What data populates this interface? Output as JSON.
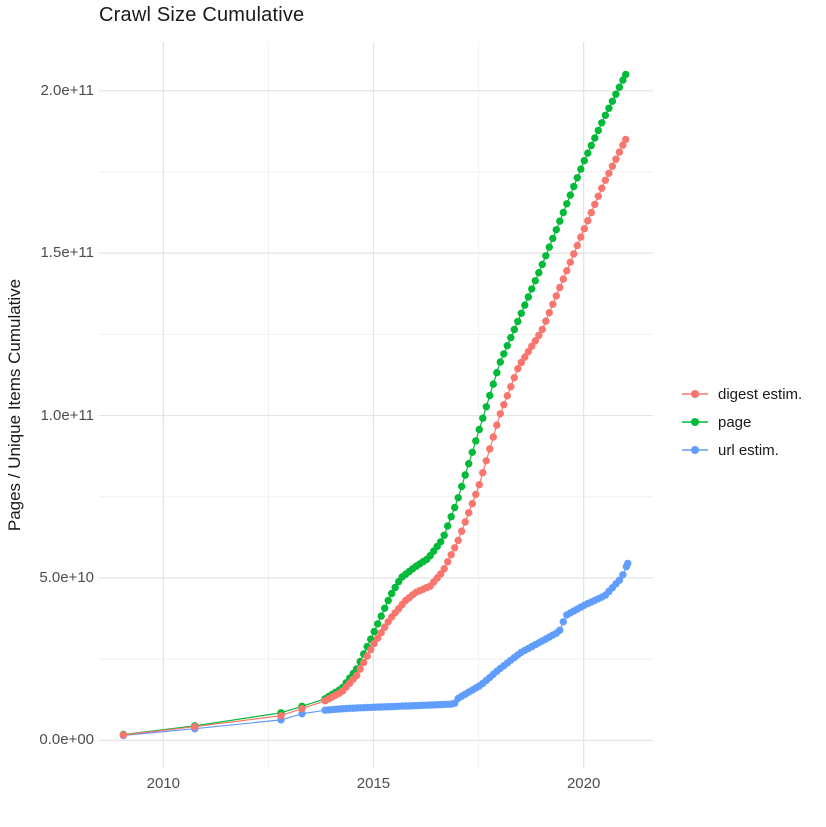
{
  "chart_data": {
    "type": "scatter",
    "title": "Crawl Size Cumulative",
    "xlabel": "",
    "ylabel": "Pages / Unique Items Cumulative",
    "legend_position": "right",
    "grid": true,
    "point_interval_years": 0.08333,
    "x_axis": {
      "range": [
        2008.47,
        2021.65
      ],
      "major_ticks": [
        {
          "value": 2010,
          "label": "2010"
        },
        {
          "value": 2015,
          "label": "2015"
        },
        {
          "value": 2020,
          "label": "2020"
        }
      ],
      "minor_ticks": [
        2012.5,
        2017.5
      ]
    },
    "y_axis": {
      "range": [
        -8500000000.0,
        215000000000.0
      ],
      "major_ticks": [
        {
          "value": 0.0,
          "label": "0.0e+00"
        },
        {
          "value": 50000000000.0,
          "label": "5.0e+10"
        },
        {
          "value": 100000000000.0,
          "label": "1.0e+11"
        },
        {
          "value": 150000000000.0,
          "label": "1.5e+11"
        },
        {
          "value": 200000000000.0,
          "label": "2.0e+11"
        }
      ],
      "minor_ticks": [
        25000000000.0,
        75000000000.0,
        125000000000.0,
        175000000000.0
      ]
    },
    "colors": {
      "grid_major": "#e4e4e4",
      "grid_minor": "#f1f1f1",
      "tick_text": "#4d4d4d",
      "title_text": "#1a1a1a"
    },
    "series": [
      {
        "name": "digest estim.",
        "color": "#F8766D",
        "sparse_points": [
          [
            2009.05,
            1700000000.0
          ],
          [
            2010.75,
            4200000000.0
          ],
          [
            2012.8,
            7600000000.0
          ],
          [
            2013.3,
            9800000000.0
          ]
        ],
        "knots": [
          [
            2013.85,
            12200000000.0
          ],
          [
            2014.25,
            15000000000.0
          ],
          [
            2014.6,
            20000000000.0
          ],
          [
            2015.0,
            29500000000.0
          ],
          [
            2015.4,
            37500000000.0
          ],
          [
            2015.76,
            43000000000.0
          ],
          [
            2016.0,
            45500000000.0
          ],
          [
            2016.35,
            47500000000.0
          ],
          [
            2016.65,
            52000000000.0
          ],
          [
            2017.0,
            61000000000.0
          ],
          [
            2017.5,
            78000000000.0
          ],
          [
            2018.0,
            100000000000.0
          ],
          [
            2018.45,
            115000000000.0
          ],
          [
            2019.0,
            126000000000.0
          ],
          [
            2019.5,
            141500000000.0
          ],
          [
            2020.0,
            157000000000.0
          ],
          [
            2020.5,
            172000000000.0
          ],
          [
            2021.0,
            185000000000.0
          ]
        ]
      },
      {
        "name": "page",
        "color": "#00BA38",
        "sparse_points": [
          [
            2009.05,
            1800000000.0
          ],
          [
            2010.75,
            4500000000.0
          ],
          [
            2012.8,
            8500000000.0
          ],
          [
            2013.3,
            10500000000.0
          ]
        ],
        "knots": [
          [
            2013.85,
            12800000000.0
          ],
          [
            2014.25,
            16000000000.0
          ],
          [
            2014.6,
            22000000000.0
          ],
          [
            2015.0,
            33000000000.0
          ],
          [
            2015.4,
            44500000000.0
          ],
          [
            2015.65,
            50000000000.0
          ],
          [
            2016.0,
            53500000000.0
          ],
          [
            2016.3,
            56000000000.0
          ],
          [
            2016.65,
            62000000000.0
          ],
          [
            2017.0,
            74000000000.0
          ],
          [
            2017.5,
            95000000000.0
          ],
          [
            2018.0,
            116000000000.0
          ],
          [
            2018.5,
            131000000000.0
          ],
          [
            2019.0,
            146000000000.0
          ],
          [
            2019.5,
            162000000000.0
          ],
          [
            2020.0,
            178000000000.0
          ],
          [
            2020.5,
            192000000000.0
          ],
          [
            2021.0,
            205000000000.0
          ]
        ]
      },
      {
        "name": "url estim.",
        "color": "#619CFF",
        "sparse_points": [
          [
            2009.05,
            1500000000.0
          ],
          [
            2010.75,
            3600000000.0
          ],
          [
            2012.8,
            6300000000.0
          ],
          [
            2013.3,
            8200000000.0
          ]
        ],
        "knots": [
          [
            2013.85,
            9300000000.0
          ],
          [
            2014.3,
            9800000000.0
          ],
          [
            2015.0,
            10200000000.0
          ],
          [
            2016.0,
            10700000000.0
          ],
          [
            2016.92,
            11200000000.0
          ],
          [
            2017.02,
            13000000000.0
          ],
          [
            2017.55,
            17000000000.0
          ],
          [
            2018.0,
            22000000000.0
          ],
          [
            2018.5,
            27000000000.0
          ],
          [
            2019.0,
            30500000000.0
          ],
          [
            2019.42,
            33500000000.0
          ],
          [
            2019.58,
            38500000000.0
          ],
          [
            2020.0,
            41500000000.0
          ],
          [
            2020.5,
            44500000000.0
          ],
          [
            2020.9,
            50000000000.0
          ],
          [
            2021.05,
            54500000000.0
          ]
        ]
      }
    ],
    "draw_order": [
      "page",
      "url estim.",
      "digest estim."
    ]
  }
}
